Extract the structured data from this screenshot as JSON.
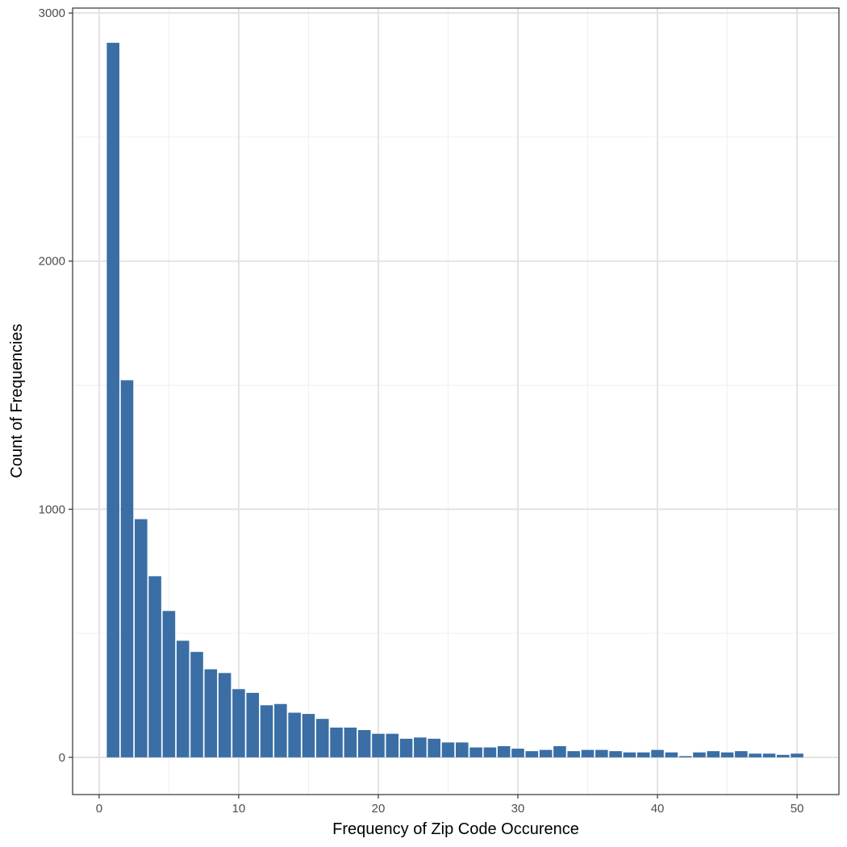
{
  "chart_data": {
    "type": "bar",
    "title": "",
    "xlabel": "Frequency of Zip Code Occurence",
    "ylabel": "Count of Frequencies",
    "x_ticks": [
      0,
      10,
      20,
      30,
      40,
      50
    ],
    "y_ticks": [
      0,
      1000,
      2000,
      3000
    ],
    "xlim": [
      -1.9,
      53.0
    ],
    "ylim": [
      -150,
      3020
    ],
    "grid": true,
    "bar_color": "#3a6ea5",
    "x": [
      1,
      2,
      3,
      4,
      5,
      6,
      7,
      8,
      9,
      10,
      11,
      12,
      13,
      14,
      15,
      16,
      17,
      18,
      19,
      20,
      21,
      22,
      23,
      24,
      25,
      26,
      27,
      28,
      29,
      30,
      31,
      32,
      33,
      34,
      35,
      36,
      37,
      38,
      39,
      40,
      41,
      42,
      43,
      44,
      45,
      46,
      47,
      48,
      49,
      50
    ],
    "values": [
      2880,
      1520,
      960,
      730,
      590,
      470,
      425,
      355,
      340,
      275,
      260,
      210,
      215,
      180,
      175,
      155,
      120,
      120,
      110,
      95,
      95,
      75,
      80,
      75,
      60,
      60,
      40,
      40,
      45,
      35,
      25,
      30,
      45,
      25,
      30,
      30,
      25,
      20,
      20,
      30,
      20,
      5,
      20,
      25,
      20,
      25,
      15,
      15,
      10,
      15
    ]
  }
}
